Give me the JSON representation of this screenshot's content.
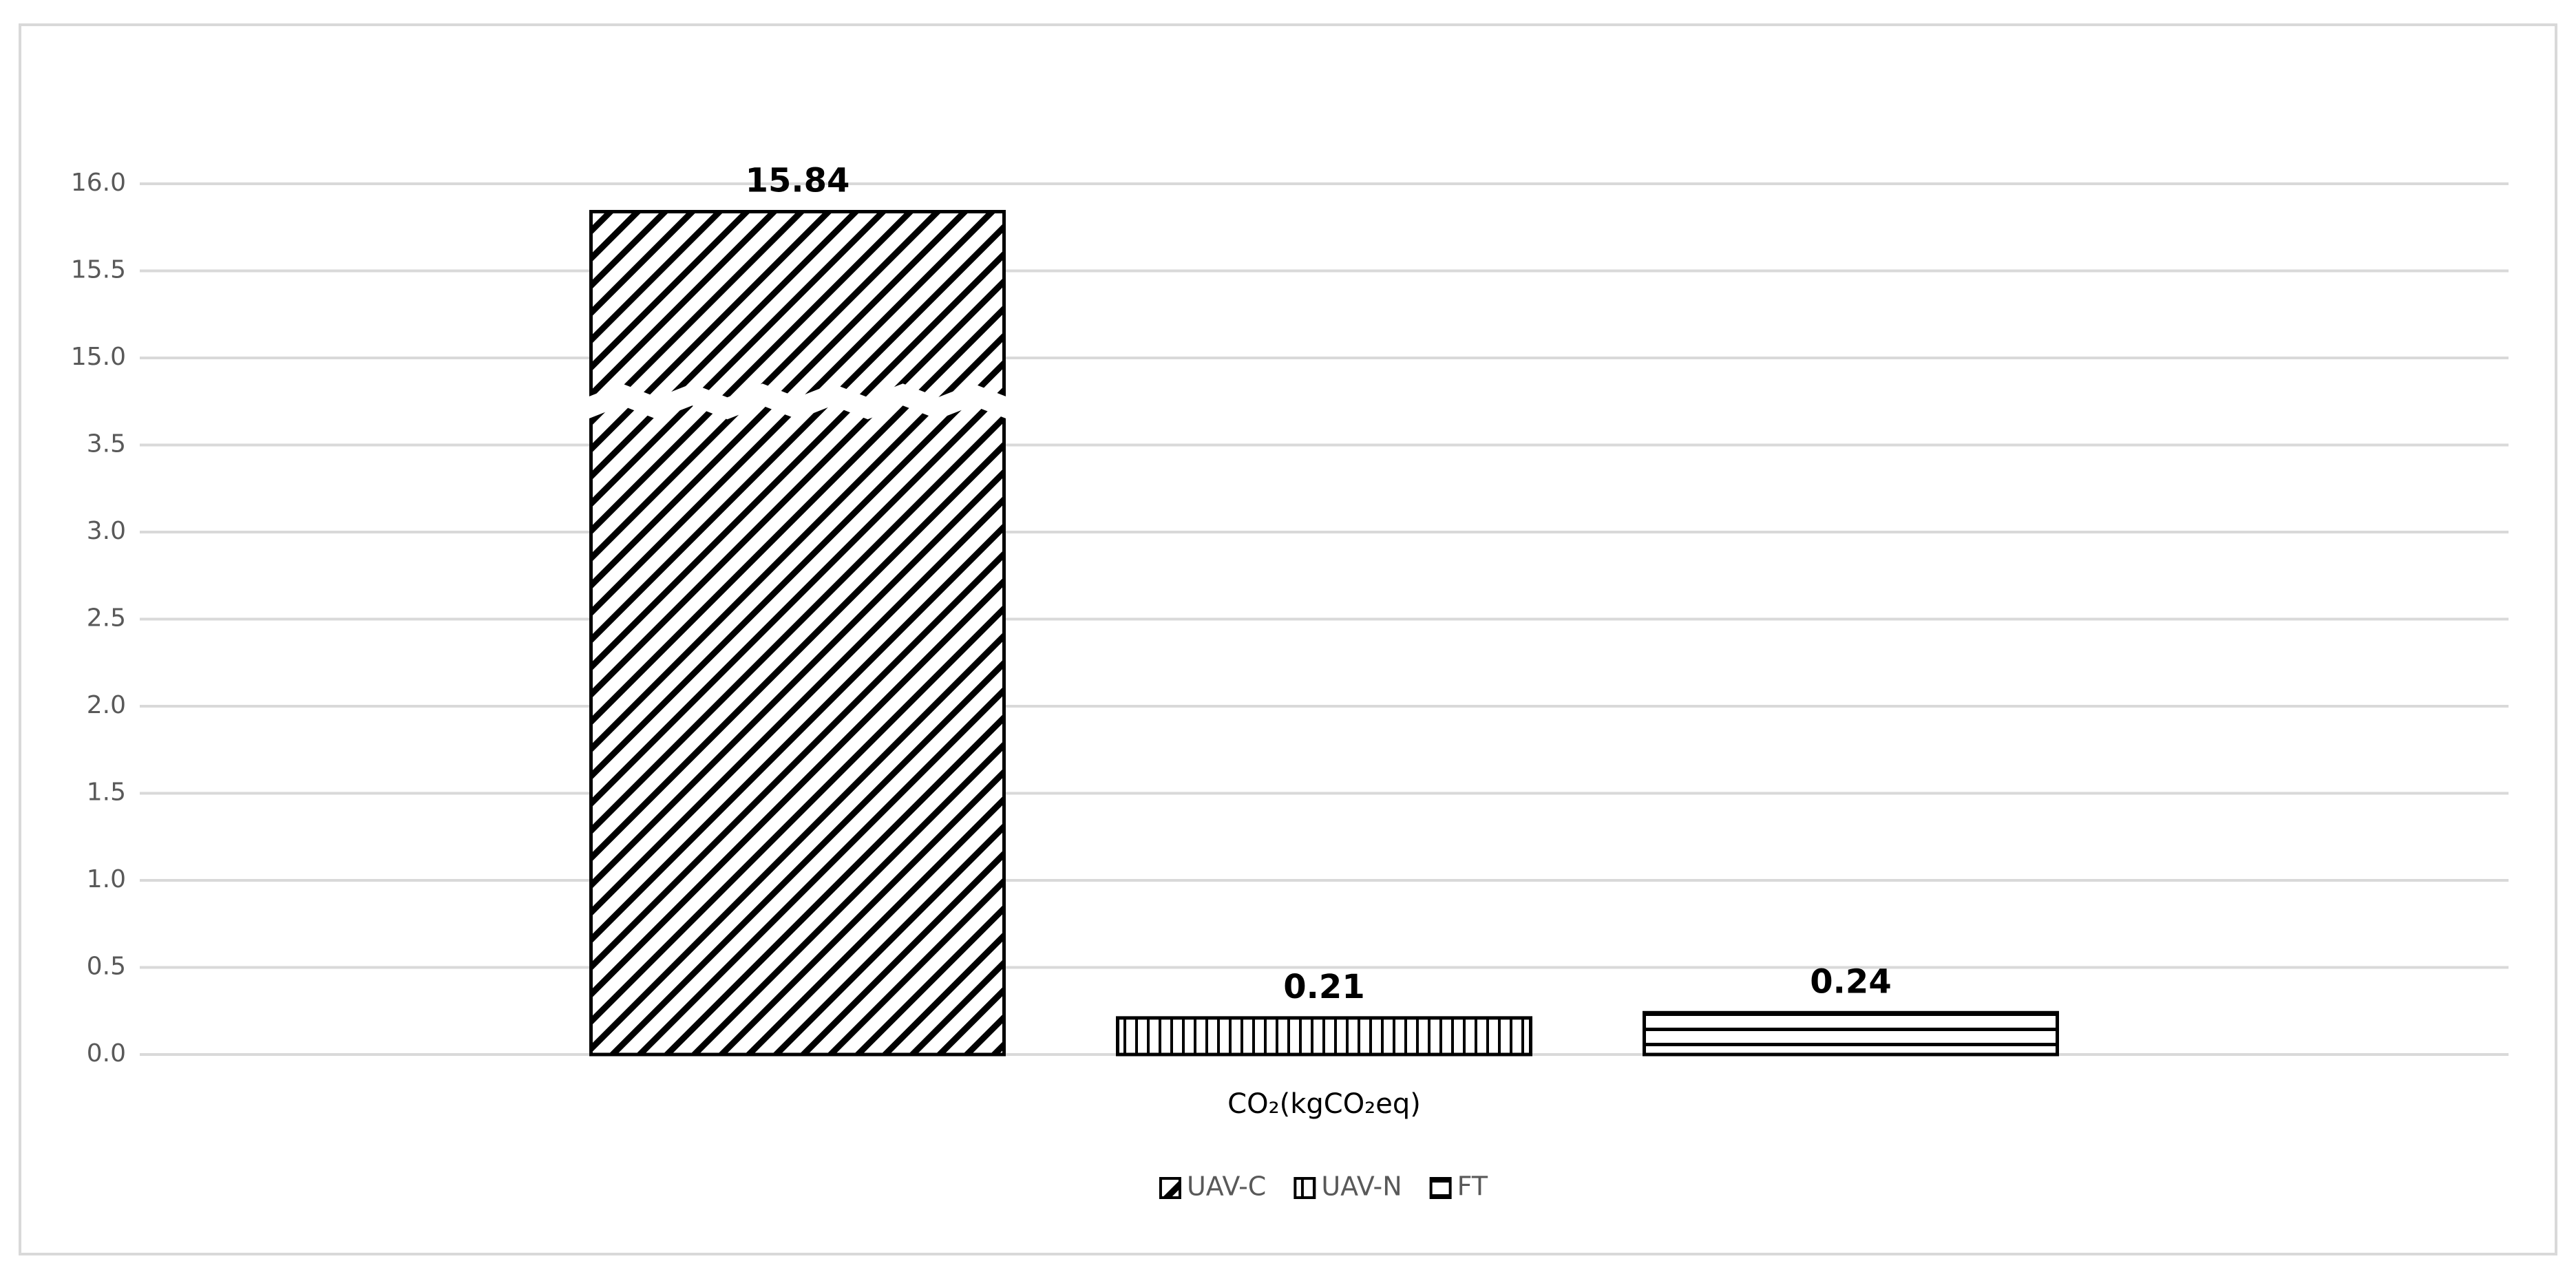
{
  "chart_data": {
    "type": "bar",
    "categories": [
      "CO₂(kgCO₂eq)"
    ],
    "series": [
      {
        "name": "UAV-C",
        "color": "#000000",
        "pattern": "diagonal",
        "values": [
          15.84
        ]
      },
      {
        "name": "UAV-N",
        "color": "#000000",
        "pattern": "vertical",
        "values": [
          0.21
        ]
      },
      {
        "name": "FT",
        "color": "#000000",
        "pattern": "horizontal",
        "values": [
          0.24
        ]
      }
    ],
    "ylim": [
      0,
      16
    ],
    "yticks": [
      {
        "value": 0,
        "label": "0.0"
      },
      {
        "value": 0.5,
        "label": "0.5"
      },
      {
        "value": 1,
        "label": "1.0"
      },
      {
        "value": 1.5,
        "label": "1.5"
      },
      {
        "value": 2,
        "label": "2.0"
      },
      {
        "value": 2.5,
        "label": "2.5"
      },
      {
        "value": 3,
        "label": "3.0"
      },
      {
        "value": 3.5,
        "label": "3.5"
      },
      {
        "value": 15,
        "label": "15.0"
      },
      {
        "value": 15.5,
        "label": "15.5"
      },
      {
        "value": 16,
        "label": "16.0"
      }
    ],
    "axis_break": true,
    "grid": true,
    "legend": "bottom"
  }
}
